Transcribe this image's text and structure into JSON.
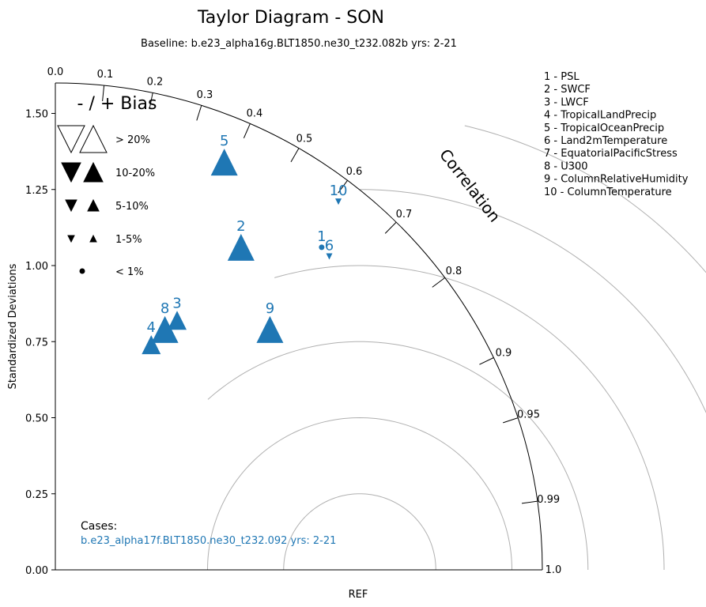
{
  "chart_data": {
    "type": "taylor",
    "title": "Taylor Diagram - SON",
    "subtitle": "Baseline: b.e23_alpha16g.BLT1850.ne30_t232.082b  yrs: 2-21",
    "ylabel": "Standardized Deviations",
    "xlabel": "REF",
    "correlation_label": "Correlation",
    "std_range": [
      0,
      1.6
    ],
    "std_ticks": [
      {
        "value": 0.0,
        "label": "0.00"
      },
      {
        "value": 0.25,
        "label": "0.25"
      },
      {
        "value": 0.5,
        "label": "0.50"
      },
      {
        "value": 0.75,
        "label": "0.75"
      },
      {
        "value": 1.0,
        "label": "1.00"
      },
      {
        "value": 1.25,
        "label": "1.25"
      },
      {
        "value": 1.5,
        "label": "1.50"
      }
    ],
    "correlation_ticks": [
      {
        "value": 0.0,
        "label": "0.0"
      },
      {
        "value": 0.1,
        "label": "0.1"
      },
      {
        "value": 0.2,
        "label": "0.2"
      },
      {
        "value": 0.3,
        "label": "0.3"
      },
      {
        "value": 0.4,
        "label": "0.4"
      },
      {
        "value": 0.5,
        "label": "0.5"
      },
      {
        "value": 0.6,
        "label": "0.6"
      },
      {
        "value": 0.7,
        "label": "0.7"
      },
      {
        "value": 0.8,
        "label": "0.8"
      },
      {
        "value": 0.9,
        "label": "0.9"
      },
      {
        "value": 0.95,
        "label": "0.95"
      },
      {
        "value": 0.99,
        "label": "0.99"
      },
      {
        "value": 1.0,
        "label": "1.0"
      }
    ],
    "rms_arcs": [
      0.25,
      0.5,
      0.75,
      1.0,
      1.25,
      1.5
    ],
    "variables": [
      "1 - PSL",
      "2 - SWCF",
      "3 - LWCF",
      "4 - TropicalLandPrecip",
      "5 - TropicalOceanPrecip",
      "6 - Land2mTemperature",
      "7 - EquatorialPacificStress",
      "8 - U300",
      "9 - ColumnRelativeHumidity",
      "10 - ColumnTemperature"
    ],
    "series": [
      {
        "name": "b.e23_alpha17f.BLT1850.ne30_t232.092  yrs: 2-21",
        "color": "#1f77b4",
        "points": [
          {
            "label": "1",
            "x": 0.875,
            "y": 1.06,
            "bias": "<1%",
            "direction": "none"
          },
          {
            "label": "2",
            "x": 0.61,
            "y": 1.06,
            "bias": ">20%",
            "direction": "+"
          },
          {
            "label": "3",
            "x": 0.4,
            "y": 0.82,
            "bias": "10-20%",
            "direction": "+"
          },
          {
            "label": "4",
            "x": 0.315,
            "y": 0.74,
            "bias": "10-20%",
            "direction": "+"
          },
          {
            "label": "5",
            "x": 0.555,
            "y": 1.34,
            "bias": ">20%",
            "direction": "+"
          },
          {
            "label": "6",
            "x": 0.9,
            "y": 1.03,
            "bias": "1-5%",
            "direction": "-"
          },
          {
            "label": "8",
            "x": 0.36,
            "y": 0.79,
            "bias": ">20%",
            "direction": "+"
          },
          {
            "label": "9",
            "x": 0.705,
            "y": 0.79,
            "bias": ">20%",
            "direction": "+"
          },
          {
            "label": "10",
            "x": 0.93,
            "y": 1.21,
            "bias": "1-5%",
            "direction": "-"
          }
        ]
      }
    ],
    "bias_legend": {
      "title": "- / + Bias",
      "entries": [
        {
          "label": "> 20%",
          "class": ">20%"
        },
        {
          "label": "10-20%",
          "class": "10-20%"
        },
        {
          "label": "5-10%",
          "class": "5-10%"
        },
        {
          "label": "1-5%",
          "class": "1-5%"
        },
        {
          "label": "< 1%",
          "class": "<1%"
        }
      ]
    },
    "cases_title": "Cases:"
  }
}
